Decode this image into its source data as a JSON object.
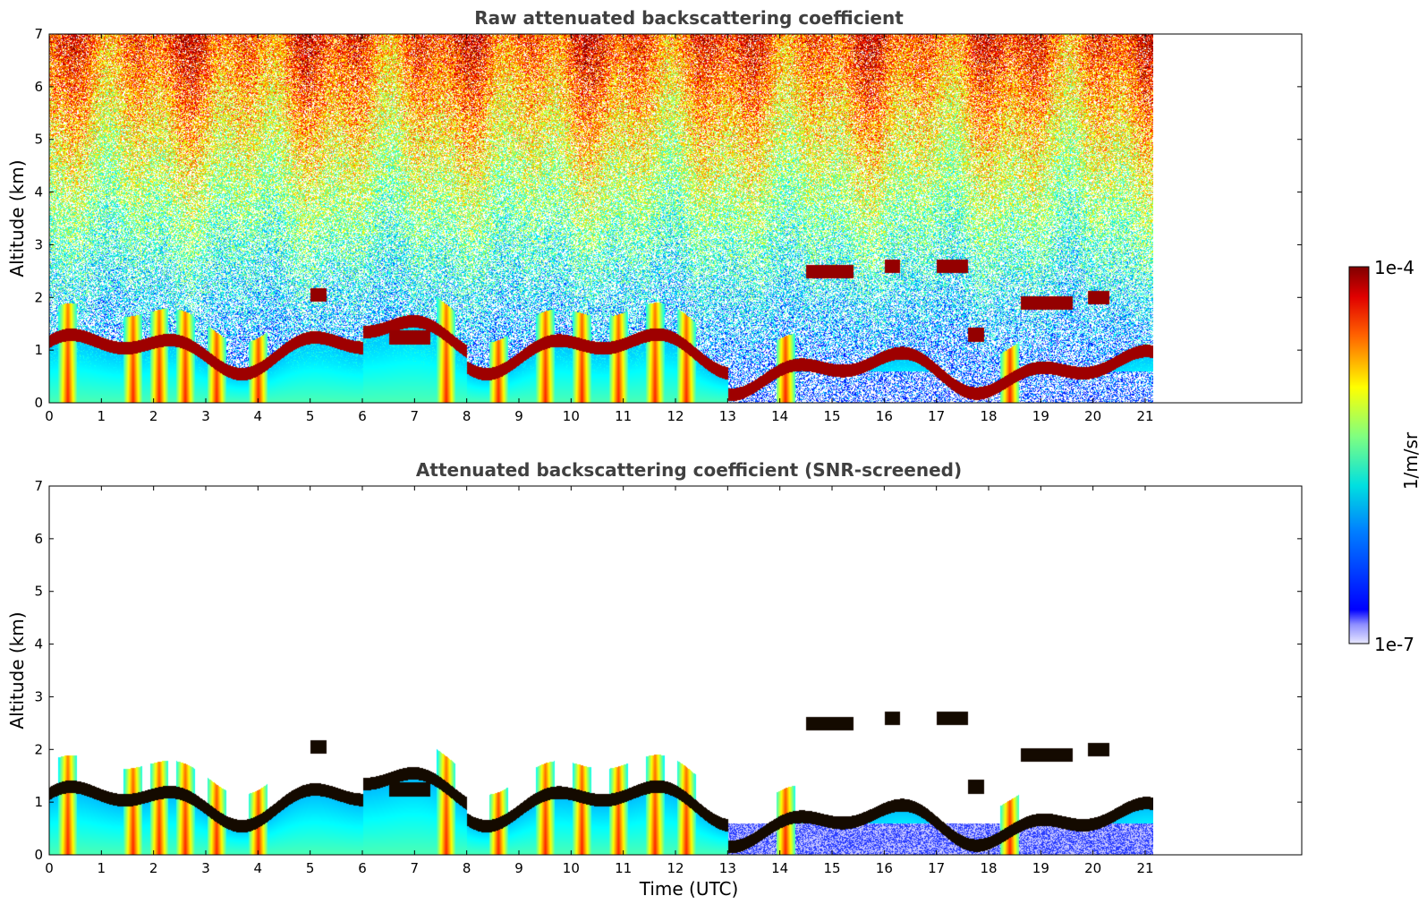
{
  "chart_data": [
    {
      "type": "heatmap",
      "title": "Raw attenuated backscattering coefficient",
      "xlabel": "",
      "ylabel": "Altitude (km)",
      "xlim": [
        0,
        24
      ],
      "ylim": [
        0,
        7
      ],
      "x_ticks": [
        "0",
        "1",
        "2",
        "3",
        "4",
        "5",
        "6",
        "7",
        "8",
        "9",
        "10",
        "11",
        "12",
        "13",
        "14",
        "15",
        "16",
        "17",
        "18",
        "19",
        "20",
        "21"
      ],
      "y_ticks": [
        "0",
        "1",
        "2",
        "3",
        "4",
        "5",
        "6",
        "7"
      ],
      "data_time_range": [
        0,
        21.15
      ],
      "screened": false,
      "description_features": {
        "boundary_layer_top_km": [
          1.1,
          0.8,
          1.4,
          0.5,
          1.3,
          0.6
        ],
        "cloud_layers": [
          {
            "t_start": 14.5,
            "t_end": 15.4,
            "alt_km": 2.5
          },
          {
            "t_start": 16.0,
            "t_end": 16.3,
            "alt_km": 2.6
          },
          {
            "t_start": 17.0,
            "t_end": 17.6,
            "alt_km": 2.6
          },
          {
            "t_start": 18.6,
            "t_end": 19.6,
            "alt_km": 1.9
          },
          {
            "t_start": 19.9,
            "t_end": 20.3,
            "alt_km": 2.0
          }
        ]
      }
    },
    {
      "type": "heatmap",
      "title": "Attenuated backscattering coefficient (SNR-screened)",
      "xlabel": "Time (UTC)",
      "ylabel": "Altitude (km)",
      "xlim": [
        0,
        24
      ],
      "ylim": [
        0,
        7
      ],
      "x_ticks": [
        "0",
        "1",
        "2",
        "3",
        "4",
        "5",
        "6",
        "7",
        "8",
        "9",
        "10",
        "11",
        "12",
        "13",
        "14",
        "15",
        "16",
        "17",
        "18",
        "19",
        "20",
        "21"
      ],
      "y_ticks": [
        "0",
        "1",
        "2",
        "3",
        "4",
        "5",
        "6",
        "7"
      ],
      "data_time_range": [
        0,
        21.15
      ],
      "screened": true
    }
  ],
  "colorbar": {
    "label": "1/m/sr",
    "max_label": "1e-4",
    "min_label": "1e-7",
    "colormap": "jet",
    "scale": "log"
  }
}
